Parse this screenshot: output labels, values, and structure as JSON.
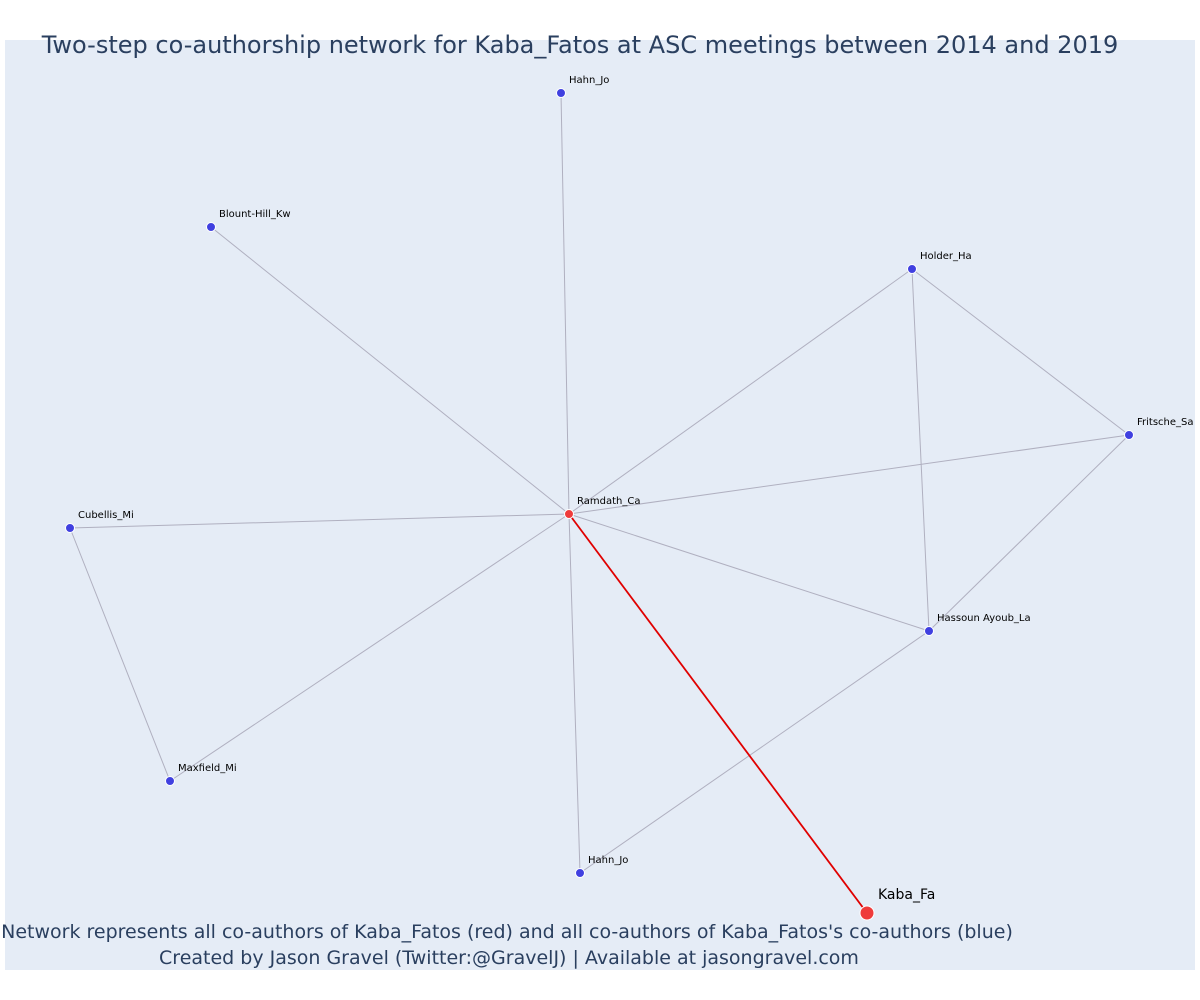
{
  "title": "Two-step co-authorship network for Kaba_Fatos at ASC meetings between 2014 and 2019",
  "footer": {
    "line1": "Network represents all co-authors of Kaba_Fatos (red) and all co-authors of Kaba_Fatos's co-authors (blue)",
    "line2": "Created by Jason Gravel (Twitter:@GravelJ) | Available at jasongravel.com"
  },
  "colors": {
    "background": "#e5ecf6",
    "first_degree": "#ef3b3b",
    "second_degree": "#4040e0",
    "edge": "#b0b0c0",
    "focal_edge": "#e00000"
  },
  "nodes": [
    {
      "id": "ramdath",
      "label": "Ramdath_Ca",
      "group": "first_degree"
    },
    {
      "id": "kaba",
      "label": "Kaba_Fa",
      "group": "focal"
    },
    {
      "id": "hahn_top",
      "label": "Hahn_Jo",
      "group": "second_degree"
    },
    {
      "id": "blount",
      "label": "Blount-Hill_Kw",
      "group": "second_degree"
    },
    {
      "id": "holder",
      "label": "Holder_Ha",
      "group": "second_degree"
    },
    {
      "id": "fritsche",
      "label": "Fritsche_Sa",
      "group": "second_degree"
    },
    {
      "id": "cubellis",
      "label": "Cubellis_Mi",
      "group": "second_degree"
    },
    {
      "id": "hassoun",
      "label": "Hassoun Ayoub_La",
      "group": "second_degree"
    },
    {
      "id": "maxfield",
      "label": "Maxfield_Mi",
      "group": "second_degree"
    },
    {
      "id": "hahn_bottom",
      "label": "Hahn_Jo",
      "group": "second_degree"
    }
  ],
  "edges": [
    {
      "source": "ramdath",
      "target": "hahn_top"
    },
    {
      "source": "ramdath",
      "target": "blount"
    },
    {
      "source": "ramdath",
      "target": "holder"
    },
    {
      "source": "ramdath",
      "target": "fritsche"
    },
    {
      "source": "ramdath",
      "target": "cubellis"
    },
    {
      "source": "ramdath",
      "target": "hassoun"
    },
    {
      "source": "ramdath",
      "target": "maxfield"
    },
    {
      "source": "ramdath",
      "target": "hahn_bottom"
    },
    {
      "source": "holder",
      "target": "fritsche"
    },
    {
      "source": "holder",
      "target": "hassoun"
    },
    {
      "source": "fritsche",
      "target": "hassoun"
    },
    {
      "source": "cubellis",
      "target": "maxfield"
    },
    {
      "source": "hassoun",
      "target": "hahn_bottom"
    },
    {
      "source": "ramdath",
      "target": "kaba",
      "highlight": true
    }
  ]
}
